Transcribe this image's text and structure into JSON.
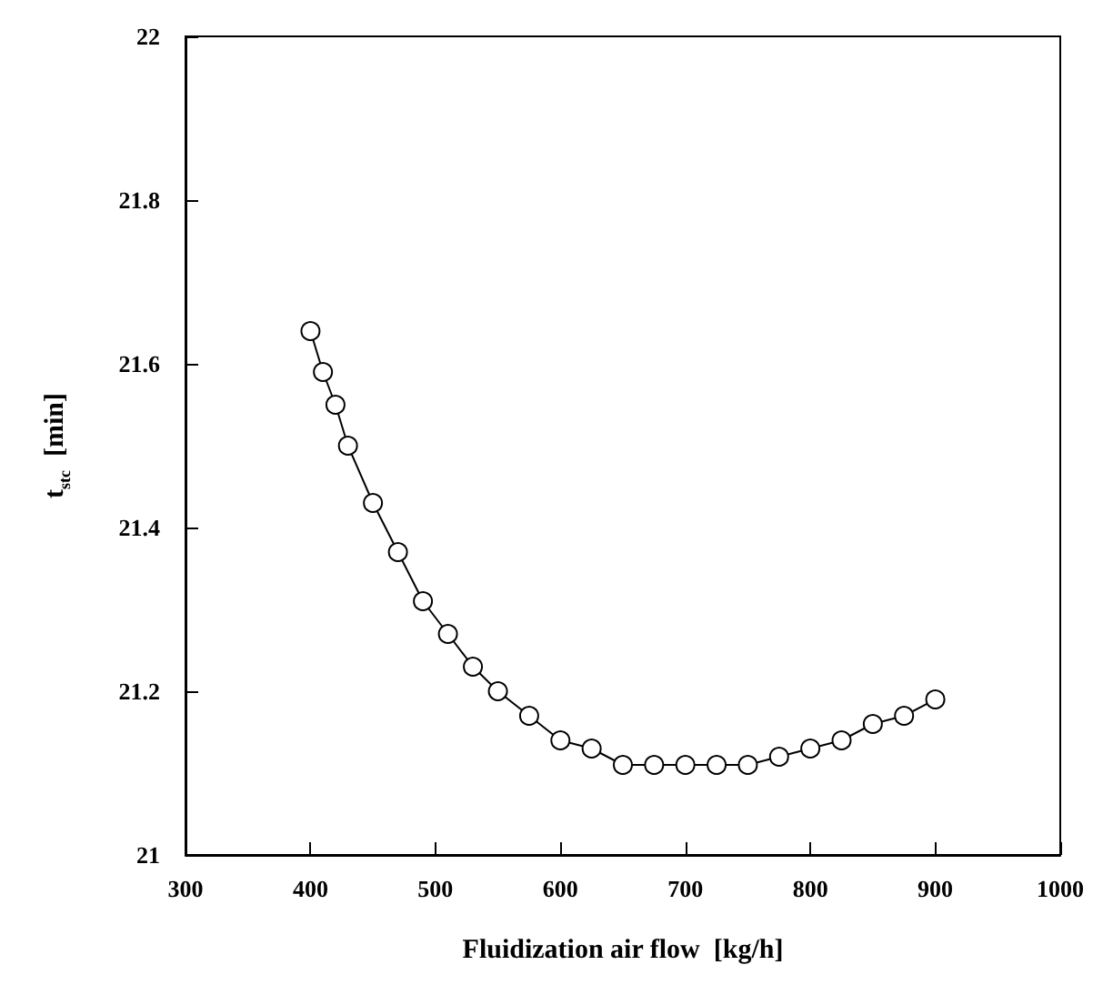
{
  "chart_data": {
    "type": "line",
    "xlabel": "Fluidization air flow  [kg/h]",
    "ylabel": "t$_{stc}$  [min]",
    "x": [
      400,
      410,
      420,
      430,
      450,
      470,
      490,
      510,
      530,
      550,
      575,
      600,
      625,
      650,
      675,
      700,
      725,
      750,
      775,
      800,
      825,
      850,
      875,
      900
    ],
    "series": [
      {
        "color": "#000000",
        "values": [
          21.64,
          21.59,
          21.55,
          21.5,
          21.43,
          21.37,
          21.31,
          21.27,
          21.23,
          21.2,
          21.17,
          21.14,
          21.13,
          21.11,
          21.11,
          21.11,
          21.11,
          21.11,
          21.12,
          21.13,
          21.14,
          21.16,
          21.17,
          21.19
        ]
      }
    ],
    "xlim": [
      300,
      1000
    ],
    "xticks": [
      300,
      400,
      500,
      600,
      700,
      800,
      900,
      1000
    ],
    "ylim": [
      21,
      22
    ],
    "yticks": [
      21,
      21.2,
      21.4,
      21.6,
      21.8,
      22
    ],
    "marker": "circle",
    "line_style": "solid"
  }
}
